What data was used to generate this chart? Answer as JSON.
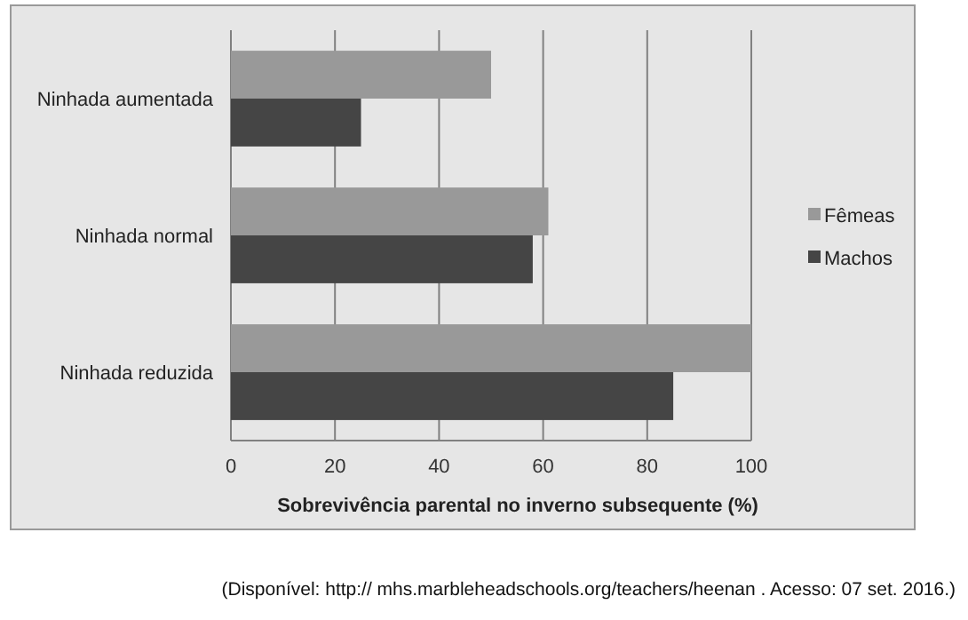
{
  "chart_data": {
    "type": "bar",
    "orientation": "horizontal",
    "categories": [
      "Ninhada aumentada",
      "Ninhada normal",
      "Ninhada reduzida"
    ],
    "series": [
      {
        "name": "Fêmeas",
        "color": "#999999",
        "values": [
          50,
          61,
          100
        ]
      },
      {
        "name": "Machos",
        "color": "#454545",
        "values": [
          25,
          58,
          85
        ]
      }
    ],
    "xlabel": "Sobrevivência  parental no inverno subsequente (%)",
    "xlim": [
      0,
      100
    ],
    "xticks": [
      0,
      20,
      40,
      60,
      80,
      100
    ],
    "grid": "x",
    "legend": "right",
    "annotations": [
      "(Disponível: http:// mhs.marbleheadschools.org/teachers/heenan . Acesso: 07 set. 2016.)"
    ]
  }
}
